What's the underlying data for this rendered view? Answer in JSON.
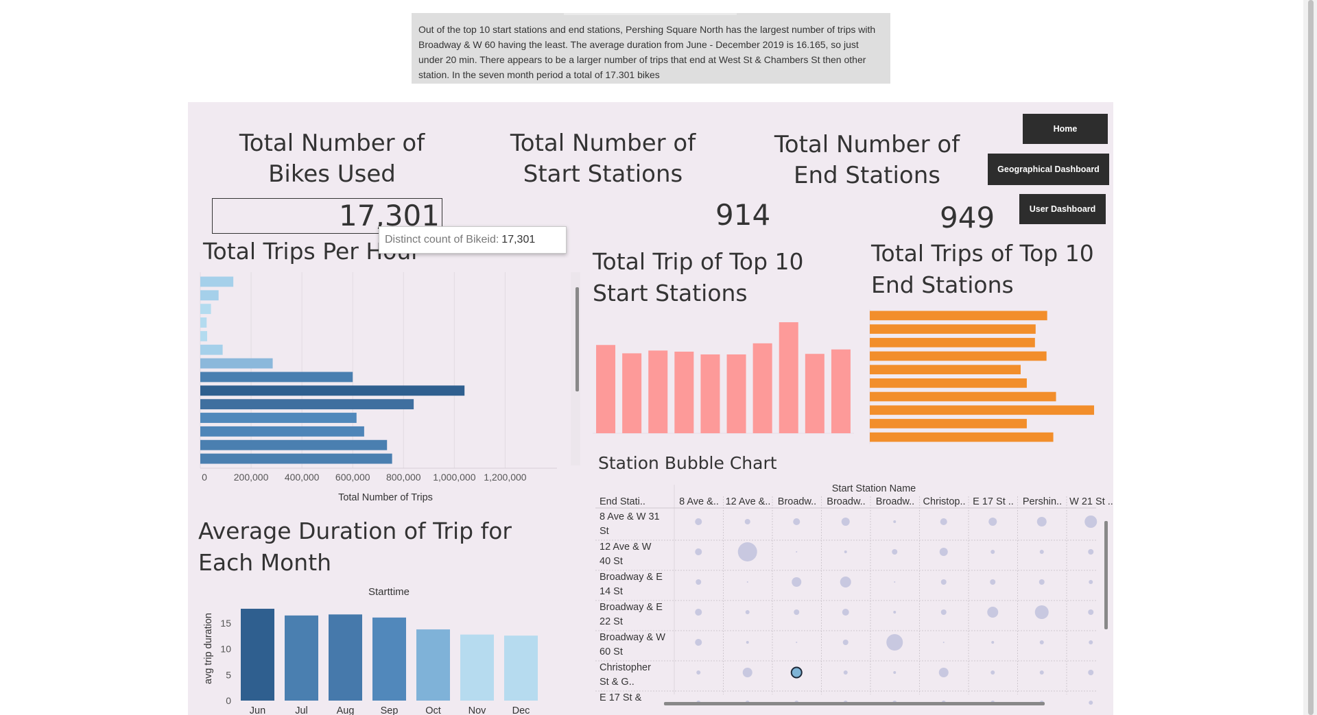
{
  "note": {
    "text": "Out of the top 10 start stations and end stations, Pershing Square North has the largest number of trips  with Broadway & W 60 having the least. The average duration from June - December 2019 is 16.165, so just under 20 min. There appears to be a larger number of trips that end at West St & Chambers St then other station.  In the seven month period a total of 17.301 bikes"
  },
  "kpis": {
    "bikes": {
      "title": "Total Number of Bikes Used",
      "value": "17,301"
    },
    "start": {
      "title": "Total Number of Start Stations",
      "value": "914"
    },
    "end": {
      "title": "Total Number of End Stations",
      "value": "949"
    }
  },
  "nav": {
    "home": "Home",
    "geo": "Geographical Dashboard",
    "user": "User Dashboard"
  },
  "tooltip": {
    "label": "Distinct count of Bikeid:",
    "value": "17,301"
  },
  "sheets": {
    "hour": "Total Trips Per Hour",
    "start10": "Total Trip of Top 10 Start Stations",
    "end10": "Total Trips of Top 10 End Stations",
    "bubble": "Station Bubble Chart",
    "duration": "Average Duration of Trip for Each Month"
  },
  "colors": {
    "dashboard_bg": "#f1eaf1",
    "nav_bg": "#2d2d2d",
    "start_bars": "#fd9a99",
    "end_bars": "#f28e2b",
    "bubble": "#b9bcda",
    "selected_bubble": "#7fb4d6"
  },
  "chart_data": [
    {
      "id": "hour",
      "type": "bar",
      "orientation": "horizontal",
      "title": "Total Trips Per Hour",
      "xlabel": "Total Number of Trips",
      "xticks": [
        "0",
        "200,000",
        "400,000",
        "600,000",
        "800,000",
        "1,000,000",
        "1,200,000"
      ],
      "xlim": [
        0,
        1350000
      ],
      "values": [
        130000,
        72000,
        42000,
        25000,
        27000,
        88000,
        285000,
        600000,
        1040000,
        840000,
        615000,
        645000,
        735000,
        755000
      ],
      "colors": [
        "#a5d0ea",
        "#a5d0ea",
        "#b3dbef",
        "#b3dbef",
        "#b3dbef",
        "#a5d0ea",
        "#8bb8db",
        "#4a7fb0",
        "#2f5f8f",
        "#3f6f9f",
        "#5188bb",
        "#4e85b8",
        "#4a7fb0",
        "#4a7fb0"
      ],
      "grid": true
    },
    {
      "id": "start10",
      "type": "bar",
      "title": "Total Trip of Top 10 Start Stations",
      "values": [
        159,
        144,
        149,
        147,
        142,
        142,
        162,
        200,
        143,
        151
      ],
      "ylim": [
        0,
        205
      ],
      "color": "#fd9a99"
    },
    {
      "id": "end10",
      "type": "bar",
      "orientation": "horizontal",
      "title": "Total Trips of Top 10 End Stations",
      "values": [
        261,
        244,
        243,
        260,
        222,
        231,
        274,
        330,
        231,
        270
      ],
      "xlim": [
        0,
        333
      ],
      "color": "#f28e2b"
    },
    {
      "id": "bubble",
      "type": "scatter",
      "title": "Station Bubble Chart",
      "col_title": "Start Station Name",
      "row_header": "End Stati..",
      "columns": [
        "8 Ave &..",
        "12 Ave &..",
        "Broadw..",
        "Broadw..",
        "Broadw..",
        "Christop..",
        "E 17 St ..",
        "Pershin..",
        "W 21 St .."
      ],
      "rows": [
        "8 Ave & W 31 St",
        "12 Ave & W 40 St",
        "Broadway & E 14 St",
        "Broadway & E 22 St",
        "Broadway & W 60 St",
        "Christopher St & G..",
        "E 17 St &"
      ],
      "sizes": [
        [
          5,
          4,
          5,
          6,
          2,
          5,
          6,
          7,
          9
        ],
        [
          5,
          14,
          1,
          2,
          4,
          6,
          3,
          3,
          4
        ],
        [
          4,
          1,
          7,
          8,
          1,
          4,
          4,
          4,
          3
        ],
        [
          5,
          3,
          4,
          5,
          2,
          4,
          8,
          10,
          4
        ],
        [
          5,
          2,
          1,
          4,
          12,
          1,
          2,
          3,
          3
        ],
        [
          3,
          7,
          7,
          3,
          2,
          7,
          3,
          3,
          4
        ],
        [
          3,
          3,
          3,
          3,
          3,
          3,
          3,
          3,
          3
        ]
      ],
      "selected": {
        "row": 5,
        "col": 2
      }
    },
    {
      "id": "duration",
      "type": "bar",
      "title": "Average Duration of Trip for Each Month",
      "top_label": "Starttime",
      "ylabel": "avg trip duration",
      "categories": [
        "Jun",
        "Jul",
        "Aug",
        "Sep",
        "Oct",
        "Nov",
        "Dec"
      ],
      "values": [
        17.8,
        16.5,
        16.7,
        16.1,
        13.8,
        12.8,
        12.6
      ],
      "yticks": [
        "0",
        "5",
        "10",
        "15"
      ],
      "ylim": [
        0,
        19
      ],
      "colors": [
        "#2f5f8f",
        "#4a7fb0",
        "#4679ab",
        "#5188bb",
        "#7fb2d8",
        "#b6dbef",
        "#b6dbef"
      ]
    }
  ]
}
